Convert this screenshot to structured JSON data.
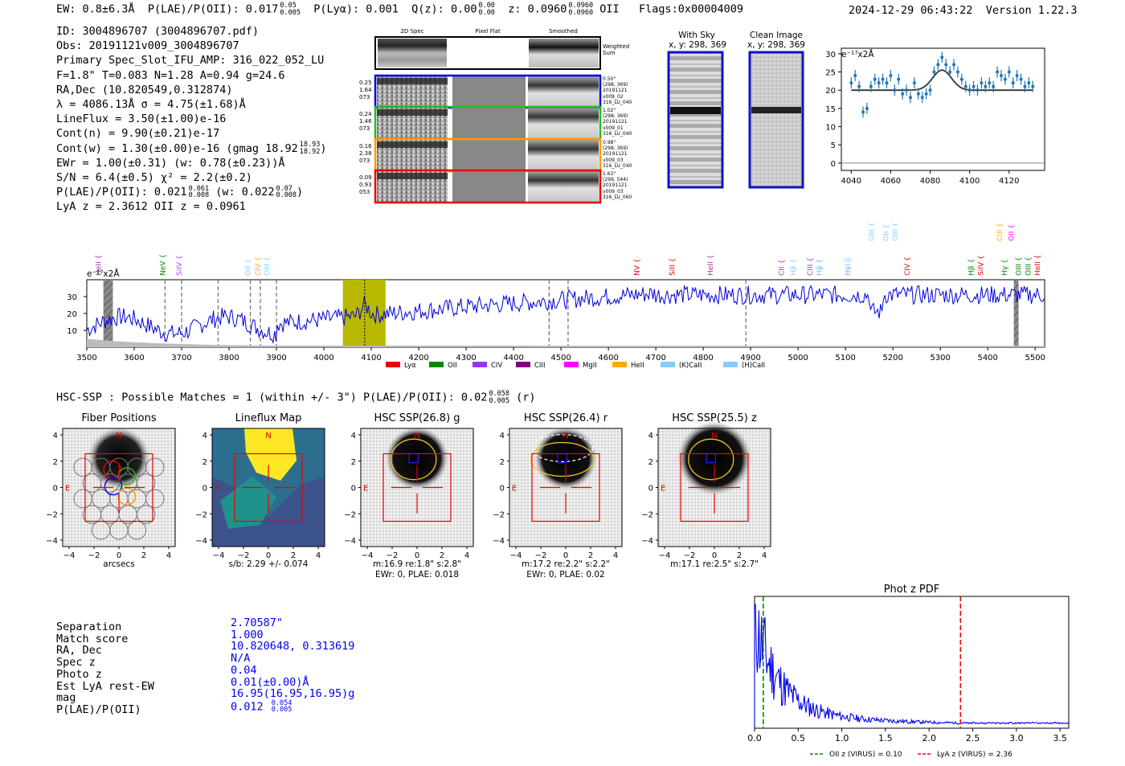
{
  "header": {
    "ew": "EW: 0.8±6.3Å",
    "plae_label": "P(LAE)/P(OII): 0.017",
    "plae_hi": "0.05",
    "plae_lo": "0.005",
    "plya": "P(Lyα): 0.001",
    "qz_label": "Q(z): 0.00",
    "qz_hi": "0.00",
    "qz_lo": "0.00",
    "z_label": "z: 0.0960",
    "z_hi": "0.0960",
    "z_lo": "0.0960",
    "z_line": "OII",
    "flags": "Flags:0x00004009",
    "datetime": "2024-12-29 06:43:22",
    "version": "Version 1.22.3"
  },
  "info": {
    "id": "ID: 3004896707 (3004896707.pdf)",
    "obs": "Obs: 20191121v009_3004896707",
    "primary": "Primary Spec_Slot_IFU_AMP: 316_022_052_LU",
    "fwhm": "F=1.8\"  T=0.083  N=1.28  A=0.94  g=24.6",
    "radec": "RA,Dec (10.820549,0.312874)",
    "lambda": "λ = 4086.13Å  σ = 4.75(±1.68)Å",
    "lineflux": "LineFlux = 3.50(±1.00)e-16",
    "contn": "Cont(n) = 9.90(±0.21)e-17",
    "contw": "Cont(w) = 1.30(±0.00)e-16 (gmag 18.92",
    "contw_hi": "18.93",
    "contw_lo": "18.92",
    "contw_end": ")",
    "ewr": "EWr = 1.00(±0.31) (w: 0.78(±0.23))Å",
    "sn": "S/N = 6.4(±0.5)  χ² = 2.2(±0.2)",
    "plae": "P(LAE)/P(OII): 0.021",
    "plae_hi": "0.061",
    "plae_lo": "0.008",
    "plae_w": "(w: 0.022",
    "plae_w_hi": "0.07",
    "plae_w_lo": "0.008",
    "plae_end": ")",
    "lyaz": "LyA z = 2.3612  OII z = 0.0961"
  },
  "fiber_panel": {
    "col_2d": "2D Spec",
    "col_flat": "Pixel Flat",
    "col_smooth": "Smoothed",
    "weighted": "Weighted Sum",
    "rows": [
      {
        "left": [
          "0.25",
          "1.64",
          "073"
        ],
        "right": [
          "0.50\"",
          "(298, 369)",
          "20191121",
          "v009_02",
          "316_LU_040"
        ],
        "color": "#0000dd"
      },
      {
        "left": [
          "0.24",
          "1.46",
          "073"
        ],
        "right": [
          "1.02\"",
          "(298, 369)",
          "20191121",
          "v009_01",
          "316_LU_040"
        ],
        "color": "#22bb22"
      },
      {
        "left": [
          "0.16",
          "2.38",
          "073"
        ],
        "right": [
          "0.98\"",
          "(298, 369)",
          "20191121",
          "v009_03",
          "316_LU_040"
        ],
        "color": "#ff9900"
      },
      {
        "left": [
          "0.09",
          "0.93",
          "053"
        ],
        "right": [
          "1.63\"",
          "(299, 544)",
          "20191121",
          "v009_03",
          "316_LU_060"
        ],
        "color": "#ee0000"
      }
    ]
  },
  "sky": {
    "with_sky": "With Sky",
    "with_sky_xy": "x, y: 298, 369",
    "clean": "Clean Image",
    "clean_xy": "x, y: 298, 369"
  },
  "zoom_plot": {
    "unit": "e⁻¹⁷x2Å",
    "xticks": [
      "4040",
      "4060",
      "4080",
      "4100",
      "4120"
    ],
    "yticks": [
      "0",
      "5",
      "10",
      "15",
      "20",
      "25",
      "30"
    ]
  },
  "chart_data": [
    {
      "type": "line",
      "title": "",
      "ylabel": "e⁻¹⁷x2Å",
      "xlim": [
        4035,
        4138
      ],
      "ylim": [
        -2,
        31.5
      ],
      "x": [
        4040,
        4042,
        4044,
        4046,
        4048,
        4050,
        4052,
        4054,
        4056,
        4058,
        4060,
        4062,
        4064,
        4066,
        4068,
        4070,
        4072,
        4074,
        4076,
        4078,
        4080,
        4082,
        4084,
        4086,
        4088,
        4090,
        4092,
        4094,
        4096,
        4098,
        4100,
        4102,
        4104,
        4106,
        4108,
        4110,
        4112,
        4114,
        4116,
        4118,
        4120,
        4122,
        4124,
        4126,
        4128,
        4130,
        4132
      ],
      "y": [
        22,
        24,
        21,
        14,
        15,
        21,
        23,
        22,
        23,
        22,
        24,
        20,
        23,
        19,
        20,
        18,
        22,
        19,
        18,
        19,
        20,
        25,
        27,
        29,
        27,
        25,
        27,
        25,
        23,
        21,
        20,
        21,
        20,
        22,
        21,
        22,
        21,
        25,
        24,
        23,
        25,
        22,
        24,
        23,
        21,
        22,
        21
      ],
      "fit_baseline": 20,
      "fit_peak": 25.5,
      "fit_center": 4086,
      "fit_sigma": 4.75
    },
    {
      "type": "line",
      "title": "",
      "ylabel": "e⁻¹⁷x2Å",
      "xlim": [
        3500,
        5520
      ],
      "ylim": [
        0,
        40
      ],
      "xticks": [
        3500,
        3600,
        3700,
        3800,
        3900,
        4000,
        4100,
        4200,
        4300,
        4400,
        4500,
        4600,
        4700,
        4800,
        4900,
        5000,
        5100,
        5200,
        5300,
        5400,
        5500
      ],
      "yticks": [
        10,
        20,
        30
      ],
      "highlight_range": [
        4040,
        4130
      ],
      "line_center": 4086,
      "masked": [
        [
          3535,
          3555
        ],
        [
          5455,
          5465
        ]
      ],
      "dashed_lines": [
        3665,
        3700,
        3777,
        3845,
        3866,
        3900,
        4475,
        4515,
        4890
      ],
      "emission_labels": [
        {
          "name": "HeII",
          "x": 3530,
          "color": "#aa33aa"
        },
        {
          "name": "NeV",
          "x": 3665,
          "color": "#008800"
        },
        {
          "name": "SiIV",
          "x": 3700,
          "color": "#aa44ff"
        },
        {
          "name": "OII",
          "x": 3845,
          "color": "#88ccff"
        },
        {
          "name": "CIV",
          "x": 3866,
          "color": "#ffaa00"
        },
        {
          "name": "OIII",
          "x": 3885,
          "color": "#88ccff"
        },
        {
          "name": "NV",
          "x": 4665,
          "color": "#ee0000"
        },
        {
          "name": "SiII",
          "x": 4740,
          "color": "#ee0000"
        },
        {
          "name": "HeII",
          "x": 4820,
          "color": "#aa33aa"
        },
        {
          "name": "Hγ",
          "x": 5050,
          "color": "#88ccff"
        },
        {
          "name": "Hγ",
          "x": 5110,
          "color": "#88ccff"
        },
        {
          "name": "SiIV",
          "x": 5390,
          "color": "#ee0000"
        },
        {
          "name": "CIII",
          "x": 5430,
          "color": "#ffaa00"
        },
        {
          "name": "Hγ",
          "x": 5440,
          "color": "#008800"
        },
        {
          "name": "CII",
          "x": 4970,
          "color": "#aa33aa"
        },
        {
          "name": "Hβ",
          "x": 4995,
          "color": "#88ccff"
        },
        {
          "name": "CIII",
          "x": 5030,
          "color": "#aa33aa"
        },
        {
          "name": "Hβ",
          "x": 5050,
          "color": "#88ccff"
        },
        {
          "name": "OIII",
          "x": 5110,
          "color": "#88ccff"
        },
        {
          "name": "OIII",
          "x": 5160,
          "color": "#88ccff"
        },
        {
          "name": "OII",
          "x": 5190,
          "color": "#88ccff"
        },
        {
          "name": "OIII",
          "x": 5210,
          "color": "#88ccff"
        },
        {
          "name": "CIV",
          "x": 5235,
          "color": "#ee0000"
        },
        {
          "name": "Hβ",
          "x": 5370,
          "color": "#008800"
        },
        {
          "name": "OII",
          "x": 5455,
          "color": "#ff00ff"
        },
        {
          "name": "OIII",
          "x": 5470,
          "color": "#008800"
        },
        {
          "name": "OIII",
          "x": 5490,
          "color": "#008800"
        },
        {
          "name": "HeII",
          "x": 5510,
          "color": "#ee0000"
        }
      ],
      "legend": [
        {
          "name": "Lyα",
          "color": "#ee0000"
        },
        {
          "name": "OII",
          "color": "#008800"
        },
        {
          "name": "CIV",
          "color": "#9933ff"
        },
        {
          "name": "CIII",
          "color": "#800080"
        },
        {
          "name": "MgII",
          "color": "#ff00ff"
        },
        {
          "name": "HeII",
          "color": "#ffaa00"
        },
        {
          "name": "(K)CaII",
          "color": "#88ccff"
        },
        {
          "name": "(H)CaII",
          "color": "#88ccff"
        }
      ]
    },
    {
      "type": "line",
      "title": "Phot z PDF",
      "xlim": [
        0.0,
        3.6
      ],
      "xticks": [
        "0.0",
        "0.5",
        "1.0",
        "1.5",
        "2.0",
        "2.5",
        "3.0",
        "3.5"
      ],
      "markers": [
        {
          "label": "OII z (VIRUS) = 0.10",
          "x": 0.1,
          "color": "#008800"
        },
        {
          "label": "LyA z (VIRUS) = 2.36",
          "x": 2.36,
          "color": "#ee0000"
        }
      ]
    }
  ],
  "hsc": {
    "heading": "HSC-SSP : Possible Matches = 1 (within +/- 3\")  P(LAE)/P(OII): 0.02",
    "heading_hi": "0.058",
    "heading_lo": "0.005",
    "heading_end": "(r)",
    "panels": [
      {
        "title": "Fiber Positions",
        "caption1": "arcsecs",
        "caption2": ""
      },
      {
        "title": "Lineflux Map",
        "caption1": "s/b: 2.29 +/- 0.074",
        "caption2": ""
      },
      {
        "title": "HSC SSP(26.8) g",
        "caption1": "m:16.9  re:1.8\"  s:2.8\"",
        "caption2": "EWr: 0, PLAE: 0.018"
      },
      {
        "title": "HSC SSP(26.4) r",
        "caption1": "m:17.2  re:2.2\"  s:2.2\"",
        "caption2": "EWr: 0, PLAE: 0.02"
      },
      {
        "title": "HSC SSP(25.5) z",
        "caption1": "m:17.1  re:2.5\"  s:2.7\"",
        "caption2": ""
      }
    ],
    "ticks": [
      "4",
      "2",
      "0",
      "−2",
      "−4"
    ],
    "xticks": [
      "−4",
      "−2",
      "0",
      "2",
      "4"
    ],
    "n_label": "N",
    "e_label": "E"
  },
  "match": {
    "labels": [
      "Separation",
      "Match score",
      "RA, Dec",
      "Spec z",
      "Photo z",
      "Est LyA rest-EW",
      "mag",
      "P(LAE)/P(OII)"
    ],
    "values": [
      "2.70587\"",
      "1.000",
      "10.820648, 0.313619",
      "N/A",
      "0.04",
      "0.01(±0.00)Å",
      "16.95(16.95,16.95)g",
      "0.012"
    ],
    "plae_hi": "0.054",
    "plae_lo": "0.005"
  }
}
